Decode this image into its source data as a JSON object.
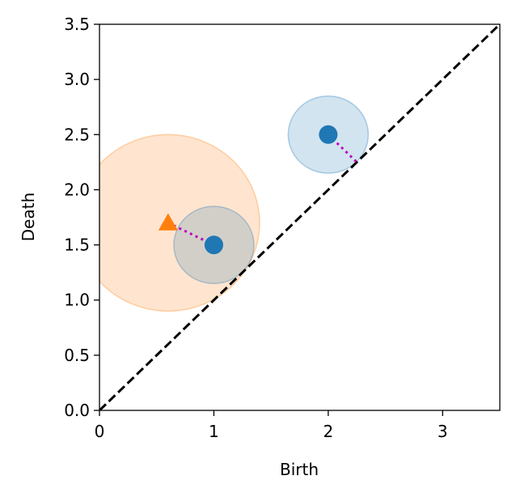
{
  "chart_data": {
    "type": "scatter",
    "title": "",
    "xlabel": "Birth",
    "ylabel": "Death",
    "xlim": [
      0,
      3.5
    ],
    "ylim": [
      0,
      3.5
    ],
    "x_ticks": [
      0,
      1,
      2,
      3
    ],
    "x_tick_labels": [
      "0",
      "1",
      "2",
      "3"
    ],
    "y_ticks": [
      0.0,
      0.5,
      1.0,
      1.5,
      2.0,
      2.5,
      3.0,
      3.5
    ],
    "y_tick_labels": [
      "0.0",
      "0.5",
      "1.0",
      "1.5",
      "2.0",
      "2.5",
      "3.0",
      "3.5"
    ],
    "grid": false,
    "diagonal": {
      "from": [
        0,
        0
      ],
      "to": [
        3.5,
        3.5
      ],
      "style": "dashed",
      "color": "#000000"
    },
    "series": [
      {
        "marker": "circle",
        "color": "#1f77b4",
        "points": [
          {
            "x": 1.0,
            "y": 1.5
          },
          {
            "x": 2.0,
            "y": 2.5
          }
        ]
      },
      {
        "marker": "triangle",
        "color": "#ff7f0e",
        "points": [
          {
            "x": 0.6,
            "y": 1.7
          }
        ]
      }
    ],
    "circles": [
      {
        "center": [
          0.6,
          1.7
        ],
        "radius": 0.8,
        "color": "#ff7f0e",
        "opacity": 0.2
      },
      {
        "center": [
          1.0,
          1.5
        ],
        "radius": 0.35,
        "color": "#1f77b4",
        "opacity": 0.2
      },
      {
        "center": [
          2.0,
          2.5
        ],
        "radius": 0.35,
        "color": "#1f77b4",
        "opacity": 0.2
      }
    ],
    "matching_lines": [
      {
        "from": [
          0.6,
          1.7
        ],
        "to": [
          1.0,
          1.5
        ],
        "color": "#bf00bf",
        "style": "dotted"
      },
      {
        "from": [
          2.0,
          2.5
        ],
        "to": [
          2.25,
          2.25
        ],
        "color": "#bf00bf",
        "style": "dotted"
      }
    ]
  }
}
